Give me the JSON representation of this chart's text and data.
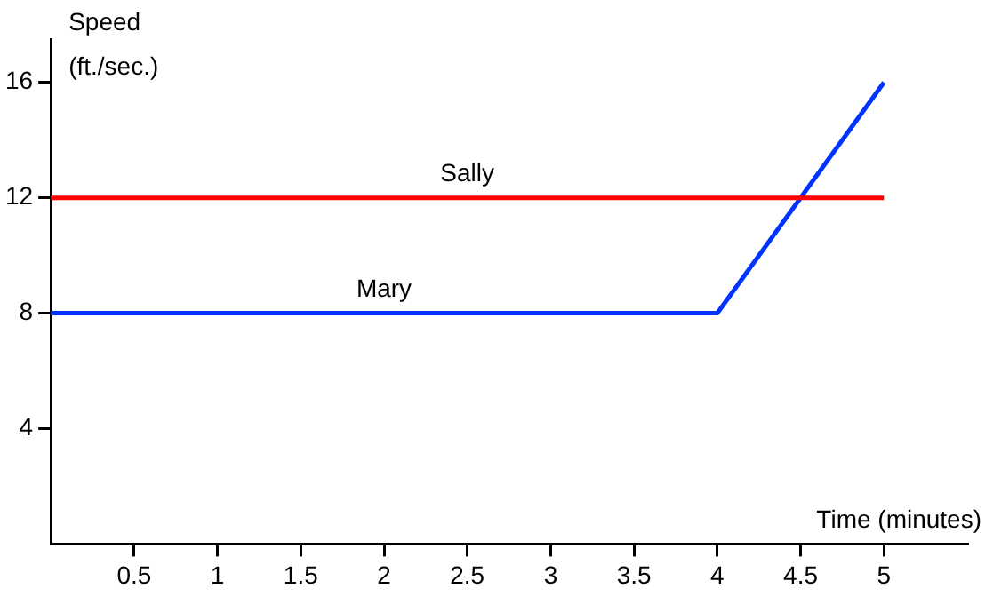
{
  "chart_data": {
    "type": "line",
    "xlabel": "Time (minutes)",
    "ylabel": "Speed (ft./sec.)",
    "xlim": [
      0,
      5.5
    ],
    "ylim": [
      0,
      17.5
    ],
    "xticks": [
      0.5,
      1,
      1.5,
      2,
      2.5,
      3,
      3.5,
      4,
      4.5,
      5
    ],
    "yticks": [
      4,
      8,
      12,
      16
    ],
    "grid": false,
    "legend": false,
    "marker": "none",
    "line_style": "solid",
    "series": [
      {
        "name": "Sally",
        "color": "#ff0000",
        "x": [
          0,
          5
        ],
        "values": [
          12,
          12
        ]
      },
      {
        "name": "Mary",
        "color": "#0033ff",
        "x": [
          0,
          4,
          5
        ],
        "values": [
          8,
          8,
          16
        ]
      }
    ]
  }
}
